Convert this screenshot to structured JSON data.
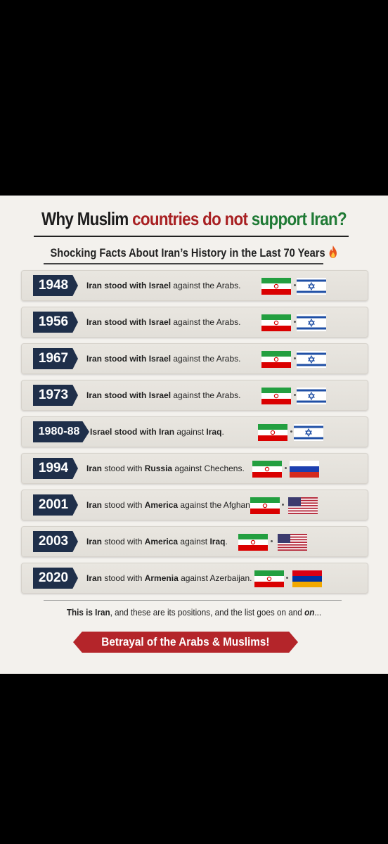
{
  "title": {
    "part1": "Why Muslim ",
    "part2": "countries do not ",
    "part3": "support Iran?"
  },
  "subtitle": "Shocking Facts About Iran’s History in the Last 70 Years",
  "fire_icon": "fire-icon",
  "rows": [
    {
      "year": "1948",
      "subject": "Iran stood",
      "with_word": " with ",
      "ally": "Israel",
      "rest": " against the Arabs.",
      "flags": [
        "iran",
        "israel"
      ]
    },
    {
      "year": "1956",
      "subject": "Iran stood",
      "with_word": " with ",
      "ally": "Israel",
      "rest": " against the Arabs.",
      "flags": [
        "iran",
        "israel"
      ]
    },
    {
      "year": "1967",
      "subject": "Iran stood",
      "with_word": " with ",
      "ally": "Israel",
      "rest": " against the Arabs.",
      "flags": [
        "iran",
        "israel"
      ]
    },
    {
      "year": "1973",
      "subject": "Iran stood",
      "with_word": " with ",
      "ally": "Israel",
      "rest": " against the Arabs.",
      "flags": [
        "iran",
        "israel"
      ]
    },
    {
      "year": "1980-88",
      "subject": "Israel stood",
      "with_word": " with ",
      "ally": "Iran",
      "rest": " against ",
      "target": "Iraq",
      "end": ".",
      "flags": [
        "iran",
        "israel"
      ]
    },
    {
      "year": "1994",
      "subject": "Iran",
      "with_word": " stood with ",
      "ally": "Russia",
      "rest": " against Chechens.",
      "flags": [
        "iran",
        "russia"
      ]
    },
    {
      "year": "2001",
      "subject": "Iran",
      "with_word": " stood with ",
      "ally": "America",
      "rest": " against the Afghan.",
      "flags": [
        "iran",
        "usa"
      ]
    },
    {
      "year": "2003",
      "subject": "Iran",
      "with_word": " stood with ",
      "ally": "America",
      "rest": " against ",
      "target": "Iraq",
      "end": ".",
      "flags": [
        "iran",
        "usa"
      ]
    },
    {
      "year": "2020",
      "subject": "Iran",
      "with_word": " stood with ",
      "ally": "Armenia",
      "rest": " against Azerbaijan.",
      "flags": [
        "iran",
        "armenia"
      ]
    }
  ],
  "footer_note": {
    "a": "This is ",
    "b": "Iran",
    "c": ", and these are its positions, and the list goes on and ",
    "d": "on",
    "e": "..."
  },
  "banner": "Betrayal of the Arabs & Muslims!",
  "colors": {
    "navy": "#1f2f4a",
    "red": "#a82022",
    "green": "#1f7a35",
    "banner": "#b4252a"
  }
}
